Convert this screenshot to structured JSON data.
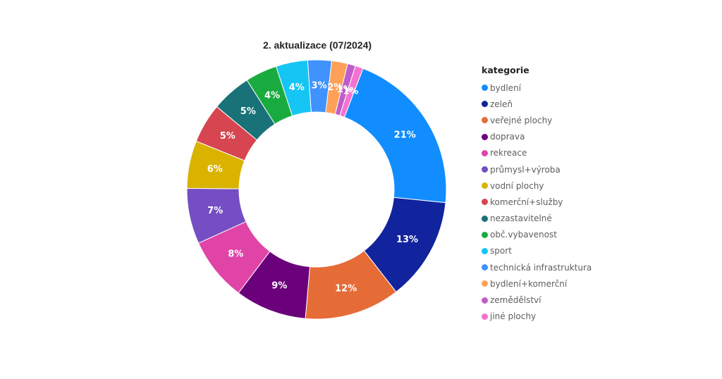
{
  "chart_data": {
    "type": "donut",
    "title": "2. aktualizace (07/2024)",
    "legend_title": "kategorie",
    "legend_position": "right",
    "categories": [
      "bydlení",
      "zeleň",
      "veřejné plochy",
      "doprava",
      "rekreace",
      "průmysl+výroba",
      "vodní plochy",
      "komerční+služby",
      "nezastavitelné",
      "obč.vybavenost",
      "sport",
      "technická infrastruktura",
      "bydlení+komerční",
      "zemědělství",
      "jiné plochy"
    ],
    "values": [
      21,
      13,
      12,
      9,
      8,
      7,
      6,
      5,
      5,
      4,
      4,
      3,
      2,
      1,
      1
    ],
    "labels": [
      "21%",
      "13%",
      "12%",
      "9%",
      "8%",
      "7%",
      "6%",
      "5%",
      "5%",
      "4%",
      "4%",
      "3%",
      "2%",
      "1%",
      "1%"
    ],
    "colors": [
      "#118DFF",
      "#12239E",
      "#E66C37",
      "#6B007B",
      "#E044A7",
      "#744EC2",
      "#D9B300",
      "#D64550",
      "#197278",
      "#1AAB40",
      "#15C6F4",
      "#4092FF",
      "#FFA058",
      "#BE5DC9",
      "#F472D0"
    ]
  }
}
